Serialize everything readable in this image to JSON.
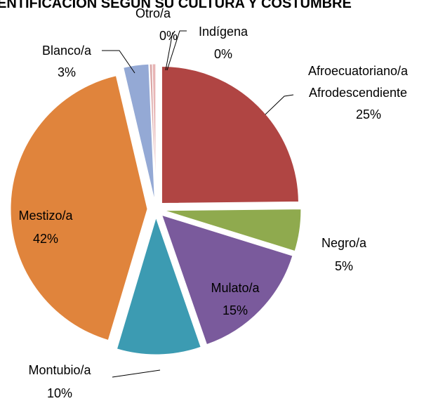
{
  "chart_data": {
    "type": "pie",
    "title": "ENTIFICACION SEGUN SU CULTURA Y COSTUMBRE",
    "categories": [
      "Afroecuatoriano/a\nAfrodescendiente",
      "Negro/a",
      "Mulato/a",
      "Montubio/a",
      "Mestizo/a",
      "Blanco/a",
      "Otro/a",
      "Indígena"
    ],
    "values": [
      25,
      5,
      15,
      10,
      42,
      3,
      0.3,
      0.4
    ],
    "value_labels": [
      "25%",
      "5%",
      "15%",
      "10%",
      "42%",
      "3%",
      "0%",
      "0%"
    ],
    "colors": [
      "#b04543",
      "#8faa4e",
      "#7a5a9c",
      "#3c9bb2",
      "#e0843c",
      "#94a9d5",
      "#d9a4a4",
      "#e8b5b5"
    ]
  }
}
